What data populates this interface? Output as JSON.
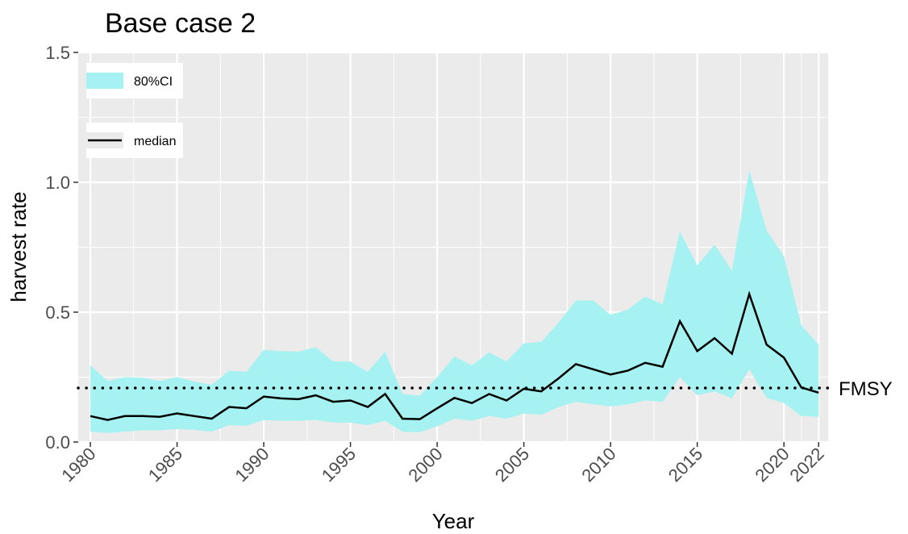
{
  "chart_data": {
    "type": "line",
    "title": "Base case 2",
    "xlabel": "Year",
    "ylabel": "harvest rate",
    "x": [
      1980,
      1981,
      1982,
      1983,
      1984,
      1985,
      1986,
      1987,
      1988,
      1989,
      1990,
      1991,
      1992,
      1993,
      1994,
      1995,
      1996,
      1997,
      1998,
      1999,
      2000,
      2001,
      2002,
      2003,
      2004,
      2005,
      2006,
      2007,
      2008,
      2009,
      2010,
      2011,
      2012,
      2013,
      2014,
      2015,
      2016,
      2017,
      2018,
      2019,
      2020,
      2021,
      2022
    ],
    "series": [
      {
        "name": "80%CI",
        "color": "#a6f2f2",
        "upper": [
          0.295,
          0.235,
          0.25,
          0.248,
          0.235,
          0.25,
          0.233,
          0.22,
          0.275,
          0.27,
          0.355,
          0.35,
          0.348,
          0.365,
          0.31,
          0.31,
          0.27,
          0.348,
          0.185,
          0.178,
          0.25,
          0.33,
          0.295,
          0.345,
          0.31,
          0.38,
          0.385,
          0.46,
          0.545,
          0.545,
          0.49,
          0.51,
          0.56,
          0.53,
          0.81,
          0.68,
          0.76,
          0.66,
          1.045,
          0.815,
          0.715,
          0.45,
          0.375
        ],
        "lower": [
          0.04,
          0.035,
          0.04,
          0.045,
          0.045,
          0.05,
          0.047,
          0.04,
          0.065,
          0.063,
          0.085,
          0.082,
          0.082,
          0.085,
          0.075,
          0.075,
          0.065,
          0.082,
          0.04,
          0.038,
          0.06,
          0.09,
          0.082,
          0.1,
          0.09,
          0.11,
          0.105,
          0.135,
          0.155,
          0.145,
          0.137,
          0.145,
          0.16,
          0.155,
          0.25,
          0.18,
          0.195,
          0.168,
          0.28,
          0.17,
          0.15,
          0.1,
          0.097
        ]
      },
      {
        "name": "median",
        "color": "#000000",
        "values": [
          0.1,
          0.085,
          0.1,
          0.1,
          0.097,
          0.11,
          0.1,
          0.09,
          0.135,
          0.13,
          0.175,
          0.168,
          0.165,
          0.18,
          0.155,
          0.16,
          0.135,
          0.185,
          0.09,
          0.088,
          0.13,
          0.17,
          0.15,
          0.185,
          0.16,
          0.205,
          0.195,
          0.245,
          0.3,
          0.28,
          0.26,
          0.275,
          0.305,
          0.29,
          0.465,
          0.35,
          0.4,
          0.34,
          0.57,
          0.375,
          0.325,
          0.21,
          0.19
        ]
      }
    ],
    "reference_line": {
      "value": 0.208,
      "label": "FMSY"
    },
    "xlim": [
      1979.3,
      2022.55
    ],
    "ylim": [
      0,
      1.5
    ],
    "xticks": [
      1980,
      1985,
      1990,
      1995,
      2000,
      2005,
      2010,
      2015,
      2020,
      2022
    ],
    "yticks": [
      {
        "value": 0,
        "label": "0.0"
      },
      {
        "value": 0.5,
        "label": "0.5"
      },
      {
        "value": 1,
        "label": "1.0"
      },
      {
        "value": 1.5,
        "label": "1.5"
      }
    ],
    "grid": true
  }
}
